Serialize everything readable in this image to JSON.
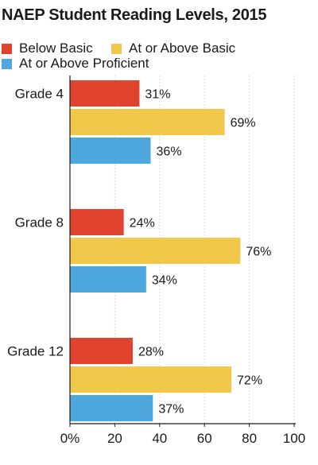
{
  "chart_data": {
    "type": "bar",
    "orientation": "horizontal",
    "title": "NAEP Student Reading Levels, 2015",
    "categories": [
      "Grade 4",
      "Grade 8",
      "Grade 12"
    ],
    "series": [
      {
        "name": "Below Basic",
        "color": "#e0442f",
        "values": [
          31,
          24,
          28
        ],
        "labels": [
          "31%",
          "24%",
          "28%"
        ]
      },
      {
        "name": "At or Above Basic",
        "color": "#f2c84b",
        "values": [
          69,
          76,
          72
        ],
        "labels": [
          "69%",
          "76%",
          "72%"
        ]
      },
      {
        "name": "At or Above Proficient",
        "color": "#4ea8de",
        "values": [
          36,
          34,
          37
        ],
        "labels": [
          "36%",
          "34%",
          "37%"
        ]
      }
    ],
    "xlim": [
      0,
      100
    ],
    "xticks": [
      0,
      20,
      40,
      60,
      80,
      100
    ],
    "xtick_labels": [
      "0%",
      "20",
      "40",
      "60",
      "80",
      "100"
    ],
    "grid": true,
    "legend_position": "top-left"
  }
}
